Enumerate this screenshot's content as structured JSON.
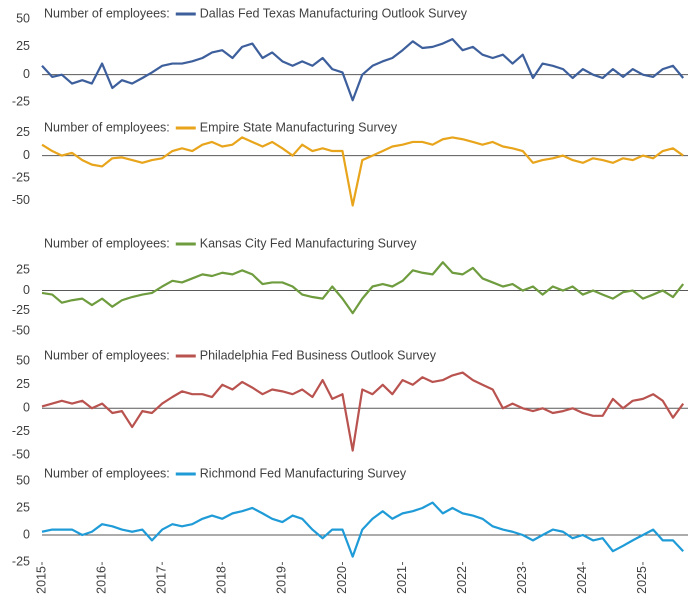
{
  "chart_data": [
    {
      "type": "line",
      "legend_title": "Number of employees:",
      "x": [
        2015,
        2015.17,
        2015.33,
        2015.5,
        2015.67,
        2015.83,
        2016,
        2016.17,
        2016.33,
        2016.5,
        2016.67,
        2016.83,
        2017,
        2017.17,
        2017.33,
        2017.5,
        2017.67,
        2017.83,
        2018,
        2018.17,
        2018.33,
        2018.5,
        2018.67,
        2018.83,
        2019,
        2019.17,
        2019.33,
        2019.5,
        2019.67,
        2019.83,
        2020,
        2020.17,
        2020.33,
        2020.5,
        2020.67,
        2020.83,
        2021,
        2021.17,
        2021.33,
        2021.5,
        2021.67,
        2021.83,
        2022,
        2022.17,
        2022.33,
        2022.5,
        2022.67,
        2022.83,
        2023,
        2023.17,
        2023.33,
        2023.5,
        2023.67,
        2023.83,
        2024,
        2024.17,
        2024.33,
        2024.5,
        2024.67,
        2024.83,
        2025,
        2025.17,
        2025.33,
        2025.5,
        2025.67
      ],
      "series": [
        {
          "name": "Dallas Fed Texas Manufacturing Outlook Survey",
          "color": "#3d5f9c",
          "values": [
            8,
            -2,
            0,
            -8,
            -5,
            -8,
            10,
            -12,
            -5,
            -8,
            -3,
            2,
            8,
            10,
            10,
            12,
            15,
            20,
            22,
            15,
            25,
            28,
            15,
            20,
            12,
            8,
            12,
            8,
            15,
            5,
            2,
            -23,
            0,
            8,
            12,
            15,
            22,
            30,
            24,
            25,
            28,
            32,
            22,
            25,
            18,
            15,
            18,
            10,
            18,
            -3,
            10,
            8,
            5,
            -3,
            5,
            0,
            -3,
            5,
            -2,
            5,
            0,
            -2,
            5,
            8,
            -3
          ]
        }
      ],
      "xlim": [
        2015,
        2025.75
      ],
      "ylim": [
        -30,
        60
      ],
      "yticks": [
        50,
        25,
        0,
        -25
      ],
      "zero_line": true
    },
    {
      "type": "line",
      "legend_title": "Number of employees:",
      "x": [
        2015,
        2015.17,
        2015.33,
        2015.5,
        2015.67,
        2015.83,
        2016,
        2016.17,
        2016.33,
        2016.5,
        2016.67,
        2016.83,
        2017,
        2017.17,
        2017.33,
        2017.5,
        2017.67,
        2017.83,
        2018,
        2018.17,
        2018.33,
        2018.5,
        2018.67,
        2018.83,
        2019,
        2019.17,
        2019.33,
        2019.5,
        2019.67,
        2019.83,
        2020,
        2020.17,
        2020.33,
        2020.5,
        2020.67,
        2020.83,
        2021,
        2021.17,
        2021.33,
        2021.5,
        2021.67,
        2021.83,
        2022,
        2022.17,
        2022.33,
        2022.5,
        2022.67,
        2022.83,
        2023,
        2023.17,
        2023.33,
        2023.5,
        2023.67,
        2023.83,
        2024,
        2024.17,
        2024.33,
        2024.5,
        2024.67,
        2024.83,
        2025,
        2025.17,
        2025.33,
        2025.5,
        2025.67
      ],
      "series": [
        {
          "name": "Empire State Manufacturing Survey",
          "color": "#e8a51c",
          "values": [
            12,
            5,
            0,
            3,
            -5,
            -10,
            -12,
            -3,
            -2,
            -5,
            -8,
            -5,
            -3,
            5,
            8,
            5,
            12,
            15,
            10,
            12,
            20,
            15,
            10,
            15,
            8,
            0,
            12,
            5,
            8,
            5,
            5,
            -55,
            -5,
            0,
            5,
            10,
            12,
            15,
            15,
            12,
            18,
            20,
            18,
            15,
            12,
            15,
            10,
            8,
            5,
            -8,
            -5,
            -3,
            0,
            -5,
            -8,
            -3,
            -5,
            -8,
            -3,
            -5,
            0,
            -3,
            5,
            8,
            0
          ]
        }
      ],
      "xlim": [
        2015,
        2025.75
      ],
      "ylim": [
        -60,
        37
      ],
      "yticks": [
        25,
        0,
        -25,
        -50
      ],
      "zero_line": true
    },
    {
      "type": "line",
      "legend_title": "Number of employees:",
      "x": [
        2015,
        2015.17,
        2015.33,
        2015.5,
        2015.67,
        2015.83,
        2016,
        2016.17,
        2016.33,
        2016.5,
        2016.67,
        2016.83,
        2017,
        2017.17,
        2017.33,
        2017.5,
        2017.67,
        2017.83,
        2018,
        2018.17,
        2018.33,
        2018.5,
        2018.67,
        2018.83,
        2019,
        2019.17,
        2019.33,
        2019.5,
        2019.67,
        2019.83,
        2020,
        2020.17,
        2020.33,
        2020.5,
        2020.67,
        2020.83,
        2021,
        2021.17,
        2021.33,
        2021.5,
        2021.67,
        2021.83,
        2022,
        2022.17,
        2022.33,
        2022.5,
        2022.67,
        2022.83,
        2023,
        2023.17,
        2023.33,
        2023.5,
        2023.67,
        2023.83,
        2024,
        2024.17,
        2024.33,
        2024.5,
        2024.67,
        2024.83,
        2025,
        2025.17,
        2025.33,
        2025.5,
        2025.67
      ],
      "series": [
        {
          "name": "Kansas City Fed Manufacturing Survey",
          "color": "#6e9c3e",
          "values": [
            -3,
            -5,
            -15,
            -12,
            -10,
            -18,
            -10,
            -20,
            -12,
            -8,
            -5,
            -3,
            5,
            12,
            10,
            15,
            20,
            18,
            22,
            20,
            25,
            20,
            8,
            10,
            10,
            5,
            -5,
            -8,
            -10,
            5,
            -10,
            -28,
            -10,
            5,
            8,
            5,
            12,
            25,
            22,
            20,
            35,
            22,
            20,
            28,
            15,
            10,
            5,
            8,
            0,
            5,
            -5,
            5,
            0,
            5,
            -5,
            0,
            -5,
            -10,
            -2,
            0,
            -10,
            -5,
            0,
            -8,
            8
          ]
        }
      ],
      "xlim": [
        2015,
        2025.75
      ],
      "ylim": [
        -55,
        65
      ],
      "yticks": [
        25,
        0,
        -25,
        -50
      ],
      "zero_line": true
    },
    {
      "type": "line",
      "legend_title": "Number of employees:",
      "x": [
        2015,
        2015.17,
        2015.33,
        2015.5,
        2015.67,
        2015.83,
        2016,
        2016.17,
        2016.33,
        2016.5,
        2016.67,
        2016.83,
        2017,
        2017.17,
        2017.33,
        2017.5,
        2017.67,
        2017.83,
        2018,
        2018.17,
        2018.33,
        2018.5,
        2018.67,
        2018.83,
        2019,
        2019.17,
        2019.33,
        2019.5,
        2019.67,
        2019.83,
        2020,
        2020.17,
        2020.33,
        2020.5,
        2020.67,
        2020.83,
        2021,
        2021.17,
        2021.33,
        2021.5,
        2021.67,
        2021.83,
        2022,
        2022.17,
        2022.33,
        2022.5,
        2022.67,
        2022.83,
        2023,
        2023.17,
        2023.33,
        2023.5,
        2023.67,
        2023.83,
        2024,
        2024.17,
        2024.33,
        2024.5,
        2024.67,
        2024.83,
        2025,
        2025.17,
        2025.33,
        2025.5,
        2025.67
      ],
      "series": [
        {
          "name": "Philadelphia Fed Business Outlook Survey",
          "color": "#b9534f",
          "values": [
            2,
            5,
            8,
            5,
            8,
            0,
            5,
            -5,
            -3,
            -20,
            -3,
            -5,
            5,
            12,
            18,
            15,
            15,
            12,
            25,
            20,
            28,
            22,
            15,
            20,
            18,
            15,
            20,
            12,
            30,
            10,
            15,
            -45,
            20,
            15,
            25,
            15,
            30,
            25,
            33,
            28,
            30,
            35,
            38,
            30,
            25,
            20,
            0,
            5,
            0,
            -3,
            0,
            -5,
            -3,
            0,
            -5,
            -8,
            -8,
            10,
            0,
            8,
            10,
            15,
            8,
            -10,
            5
          ]
        }
      ],
      "xlim": [
        2015,
        2025.75
      ],
      "ylim": [
        -55,
        62
      ],
      "yticks": [
        50,
        25,
        0,
        -25,
        -50
      ],
      "zero_line": true
    },
    {
      "type": "line",
      "legend_title": "Number of employees:",
      "x": [
        2015,
        2015.17,
        2015.33,
        2015.5,
        2015.67,
        2015.83,
        2016,
        2016.17,
        2016.33,
        2016.5,
        2016.67,
        2016.83,
        2017,
        2017.17,
        2017.33,
        2017.5,
        2017.67,
        2017.83,
        2018,
        2018.17,
        2018.33,
        2018.5,
        2018.67,
        2018.83,
        2019,
        2019.17,
        2019.33,
        2019.5,
        2019.67,
        2019.83,
        2020,
        2020.17,
        2020.33,
        2020.5,
        2020.67,
        2020.83,
        2021,
        2021.17,
        2021.33,
        2021.5,
        2021.67,
        2021.83,
        2022,
        2022.17,
        2022.33,
        2022.5,
        2022.67,
        2022.83,
        2023,
        2023.17,
        2023.33,
        2023.5,
        2023.67,
        2023.83,
        2024,
        2024.17,
        2024.33,
        2024.5,
        2024.67,
        2024.83,
        2025,
        2025.17,
        2025.33,
        2025.5,
        2025.67
      ],
      "series": [
        {
          "name": "Richmond Fed Manufacturing Survey",
          "color": "#1f9bd7",
          "values": [
            3,
            5,
            5,
            5,
            0,
            3,
            10,
            8,
            5,
            3,
            5,
            -5,
            5,
            10,
            8,
            10,
            15,
            18,
            15,
            20,
            22,
            25,
            20,
            15,
            12,
            18,
            15,
            5,
            -3,
            5,
            5,
            -20,
            5,
            15,
            22,
            15,
            20,
            22,
            25,
            30,
            20,
            25,
            20,
            18,
            15,
            8,
            5,
            3,
            0,
            -5,
            0,
            5,
            3,
            -3,
            0,
            -5,
            -3,
            -15,
            -10,
            -5,
            0,
            5,
            -5,
            -5,
            -15
          ]
        }
      ],
      "xlim": [
        2015,
        2025.75
      ],
      "ylim": [
        -25,
        62
      ],
      "xticks": [
        2015,
        2016,
        2017,
        2018,
        2019,
        2020,
        2021,
        2022,
        2023,
        2024,
        2025
      ],
      "yticks": [
        50,
        25,
        0,
        -25
      ],
      "zero_line": true
    }
  ]
}
